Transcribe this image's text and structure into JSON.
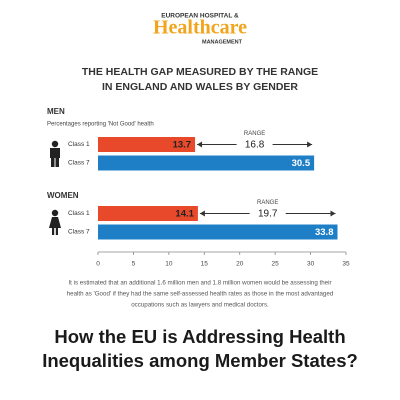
{
  "header": {
    "logo_top": "EUROPEAN HOSPITAL &",
    "logo_main": "Healthcare",
    "logo_bottom": "MANAGEMENT"
  },
  "chart_data": {
    "type": "hbar",
    "title_lines": [
      "THE HEALTH GAP MEASURED BY THE RANGE",
      "IN ENGLAND AND WALES BY GENDER"
    ],
    "subtitle": "Percentages reporting 'Not Good' health",
    "groups": [
      {
        "name": "MEN",
        "categories": [
          "Class 1",
          "Class 7"
        ],
        "values": [
          13.7,
          30.5
        ],
        "colors": [
          "#e8492a",
          "#1f7fc6"
        ],
        "range_label": "RANGE",
        "range": 16.8
      },
      {
        "name": "WOMEN",
        "categories": [
          "Class 1",
          "Class 7"
        ],
        "values": [
          14.1,
          33.8
        ],
        "colors": [
          "#e8492a",
          "#1f7fc6"
        ],
        "range_label": "RANGE",
        "range": 19.7
      }
    ],
    "xlim": [
      0,
      35
    ],
    "xticks": [
      0,
      5,
      10,
      15,
      20,
      25,
      30,
      35
    ],
    "footnote_lines": [
      "It is estimated that an additional 1.6 million men and 1.8 million women would be assessing their",
      "health as 'Good' if they had the same self-assessed health rates as those in the most advantaged",
      "occupations such as lawyers and medical doctors."
    ]
  },
  "headline_lines": [
    "How the EU is Addressing Health",
    "Inequalities among Member States?"
  ]
}
